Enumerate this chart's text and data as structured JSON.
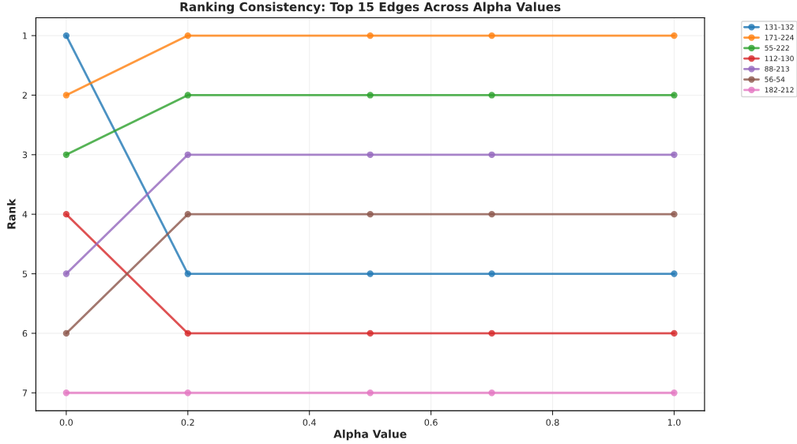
{
  "chart_data": {
    "type": "line",
    "title": "Ranking Consistency: Top 15 Edges Across Alpha Values",
    "xlabel": "Alpha Value",
    "ylabel": "Rank",
    "x": [
      0.0,
      0.2,
      0.5,
      0.7,
      1.0
    ],
    "series": [
      {
        "name": "131-132",
        "color": "#1f77b4",
        "values": [
          1,
          5,
          5,
          5,
          5
        ]
      },
      {
        "name": "171-224",
        "color": "#ff7f0e",
        "values": [
          2,
          1,
          1,
          1,
          1
        ]
      },
      {
        "name": "55-222",
        "color": "#2ca02c",
        "values": [
          3,
          2,
          2,
          2,
          2
        ]
      },
      {
        "name": "112-130",
        "color": "#d62728",
        "values": [
          4,
          6,
          6,
          6,
          6
        ]
      },
      {
        "name": "88-213",
        "color": "#9467bd",
        "values": [
          5,
          3,
          3,
          3,
          3
        ]
      },
      {
        "name": "56-54",
        "color": "#8c564b",
        "values": [
          6,
          4,
          4,
          4,
          4
        ]
      },
      {
        "name": "182-212",
        "color": "#e377c2",
        "values": [
          7,
          7,
          7,
          7,
          7
        ]
      }
    ],
    "xlim": [
      -0.05,
      1.05
    ],
    "xticks": [
      {
        "value": 0,
        "label": "0.0"
      },
      0.2,
      0.4,
      0.6,
      0.8,
      {
        "value": 1,
        "label": "1.0"
      }
    ],
    "ylim": [
      7.3,
      0.7
    ],
    "yticks": [
      1,
      2,
      3,
      4,
      5,
      6,
      7
    ],
    "grid": true,
    "legend": "top right",
    "marker": "circle",
    "line_style": "solid"
  }
}
